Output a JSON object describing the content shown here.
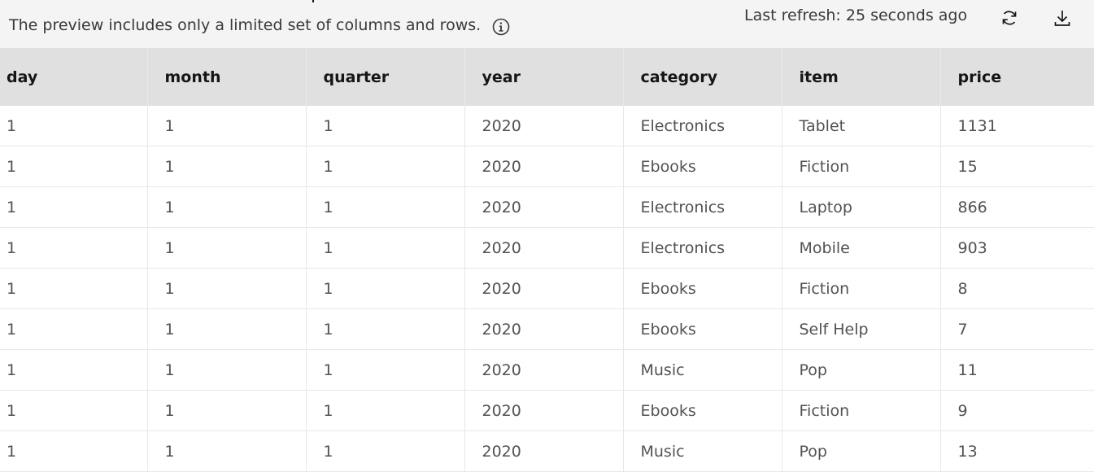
{
  "header": {
    "notice": "The preview includes only a limited set of columns and rows.",
    "last_refresh": "Last refresh: 25 seconds ago",
    "icons": {
      "info": "info-icon",
      "refresh": "refresh-icon",
      "download": "download-icon"
    }
  },
  "table": {
    "columns": [
      "day",
      "month",
      "quarter",
      "year",
      "category",
      "item",
      "price"
    ],
    "rows": [
      [
        "1",
        "1",
        "1",
        "2020",
        "Electronics",
        "Tablet",
        "1131"
      ],
      [
        "1",
        "1",
        "1",
        "2020",
        "Ebooks",
        "Fiction",
        "15"
      ],
      [
        "1",
        "1",
        "1",
        "2020",
        "Electronics",
        "Laptop",
        "866"
      ],
      [
        "1",
        "1",
        "1",
        "2020",
        "Electronics",
        "Mobile",
        "903"
      ],
      [
        "1",
        "1",
        "1",
        "2020",
        "Ebooks",
        "Fiction",
        "8"
      ],
      [
        "1",
        "1",
        "1",
        "2020",
        "Ebooks",
        "Self Help",
        "7"
      ],
      [
        "1",
        "1",
        "1",
        "2020",
        "Music",
        "Pop",
        "11"
      ],
      [
        "1",
        "1",
        "1",
        "2020",
        "Ebooks",
        "Fiction",
        "9"
      ],
      [
        "1",
        "1",
        "1",
        "2020",
        "Music",
        "Pop",
        "13"
      ]
    ]
  },
  "colors": {
    "header_bg": "#f4f4f4",
    "table_header_bg": "#e0e0e0",
    "cell_text": "#525252"
  }
}
